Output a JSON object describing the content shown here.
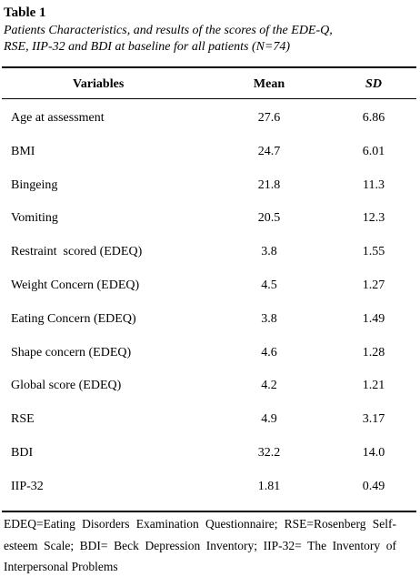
{
  "title": "Table 1",
  "caption": [
    "Patients Characteristics, and results of the scores of the EDE-Q,",
    "RSE, IIP-32 and BDI at baseline for all patients (N=74)"
  ],
  "table": {
    "header": [
      "Variables",
      "Mean",
      "SD"
    ],
    "rows": [
      [
        "Age at assessment",
        "27.6",
        "6.86"
      ],
      [
        "BMI",
        "24.7",
        "6.01"
      ],
      [
        "Bingeing",
        "21.8",
        "11.3"
      ],
      [
        "Vomiting",
        "20.5",
        "12.3"
      ],
      [
        "Restraint  scored (EDEQ)",
        "3.8",
        "1.55"
      ],
      [
        "Weight Concern (EDEQ)",
        "4.5",
        "1.27"
      ],
      [
        "Eating Concern (EDEQ)",
        "3.8",
        "1.49"
      ],
      [
        "Shape concern (EDEQ)",
        "4.6",
        "1.28"
      ],
      [
        "Global score (EDEQ)",
        "4.2",
        "1.21"
      ],
      [
        "RSE",
        "4.9",
        "3.17"
      ],
      [
        "BDI",
        "32.2",
        "14.0"
      ],
      [
        "IIP-32",
        "1.81",
        "0.49"
      ]
    ]
  },
  "footnote": "EDEQ=Eating Disorders Examination Questionnaire; RSE=Rosenberg Self-esteem Scale; BDI= Beck Depression Inventory; IIP-32= The Inventory of Interpersonal Problems"
}
